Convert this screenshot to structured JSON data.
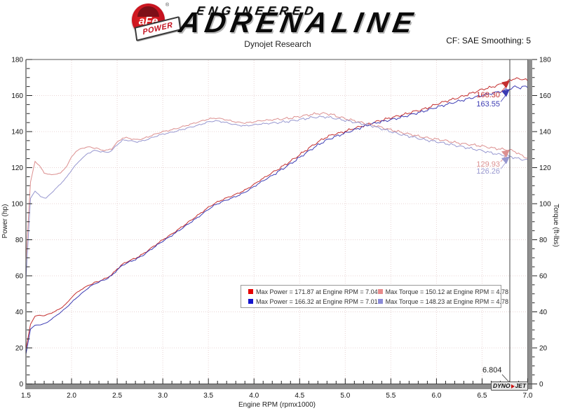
{
  "header": {
    "logo_afe": "aFe",
    "logo_power": "POWER",
    "logo_registered": "®",
    "wordmark_line1": "ENGINEERED",
    "wordmark_line2": "ADRENALINE",
    "subtitle": "Dynojet Research",
    "cf_label": "CF: SAE Smoothing: 5"
  },
  "footer_logo": {
    "dyno": "DYNO",
    "jet": "JET"
  },
  "chart_data": {
    "type": "line",
    "xlabel": "Engine RPM (rpmx1000)",
    "ylabel_left": "Power (hp)",
    "ylabel_right": "Torque (ft-lbs)",
    "xlim": [
      1.5,
      7.0
    ],
    "ylim": [
      0,
      180
    ],
    "x_major_step": 0.5,
    "x_minor_step": 0.1,
    "y_major_step": 20,
    "y_minor_step": 5,
    "grid": "dotted",
    "grid_color": "#e8d4d4",
    "legend_position": "bottom-center",
    "cursor": {
      "x": 6.804,
      "label": "6.804"
    },
    "cursor_readouts": [
      {
        "text": "168.30",
        "value": 168.3,
        "color": "#c42f2f"
      },
      {
        "text": "163.55",
        "value": 163.55,
        "color": "#3c3cb4"
      },
      {
        "text": "129.93",
        "value": 129.93,
        "color": "#dc9090"
      },
      {
        "text": "126.26",
        "value": 126.26,
        "color": "#9898d0"
      }
    ],
    "legend": [
      {
        "color": "#e60000",
        "label": "Max Power = 171.87 at Engine RPM = 7.04"
      },
      {
        "color": "#1414cc",
        "label": "Max Power = 166.32 at Engine RPM = 7.01"
      },
      {
        "color": "#e88a8a",
        "label": "Max Torque = 150.12 at Engine RPM = 4.78"
      },
      {
        "color": "#8a8ad8",
        "label": "Max Torque = 148.23 at Engine RPM = 4.78"
      }
    ],
    "series": [
      {
        "name": "power-red",
        "color": "#c42f2f",
        "axis": "left",
        "points": [
          [
            1.5,
            19.4
          ],
          [
            1.55,
            33.1
          ],
          [
            1.6,
            37.6
          ],
          [
            1.65,
            38.0
          ],
          [
            1.7,
            37.9
          ],
          [
            1.78,
            39.3
          ],
          [
            1.88,
            41.9
          ],
          [
            1.95,
            44.9
          ],
          [
            2.0,
            48.0
          ],
          [
            2.05,
            50.4
          ],
          [
            2.1,
            52.2
          ],
          [
            2.18,
            54.6
          ],
          [
            2.25,
            56.1
          ],
          [
            2.32,
            57.4
          ],
          [
            2.38,
            58.7
          ],
          [
            2.44,
            60.6
          ],
          [
            2.5,
            63.8
          ],
          [
            2.56,
            66.5
          ],
          [
            2.62,
            68.1
          ],
          [
            2.7,
            69.7
          ],
          [
            2.78,
            72.0
          ],
          [
            2.86,
            74.9
          ],
          [
            2.94,
            77.8
          ],
          [
            3.0,
            80.0
          ],
          [
            3.1,
            83.2
          ],
          [
            3.2,
            86.8
          ],
          [
            3.3,
            90.5
          ],
          [
            3.4,
            94.2
          ],
          [
            3.5,
            98.0
          ],
          [
            3.58,
            100.5
          ],
          [
            3.66,
            102.4
          ],
          [
            3.74,
            104.0
          ],
          [
            3.82,
            105.6
          ],
          [
            3.9,
            107.5
          ],
          [
            3.98,
            110.0
          ],
          [
            4.06,
            112.8
          ],
          [
            4.14,
            115.3
          ],
          [
            4.22,
            117.8
          ],
          [
            4.3,
            120.3
          ],
          [
            4.38,
            122.9
          ],
          [
            4.46,
            125.7
          ],
          [
            4.54,
            128.6
          ],
          [
            4.62,
            131.5
          ],
          [
            4.7,
            134.2
          ],
          [
            4.78,
            136.6
          ],
          [
            4.86,
            138.3
          ],
          [
            4.94,
            139.2
          ],
          [
            5.02,
            140.5
          ],
          [
            5.1,
            141.8
          ],
          [
            5.18,
            143.0
          ],
          [
            5.26,
            144.2
          ],
          [
            5.34,
            145.5
          ],
          [
            5.42,
            146.6
          ],
          [
            5.5,
            147.7
          ],
          [
            5.58,
            148.7
          ],
          [
            5.66,
            149.7
          ],
          [
            5.74,
            151.0
          ],
          [
            5.82,
            151.9
          ],
          [
            5.9,
            153.1
          ],
          [
            6.0,
            155.2
          ],
          [
            6.1,
            156.8
          ],
          [
            6.2,
            158.2
          ],
          [
            6.3,
            159.8
          ],
          [
            6.4,
            161.6
          ],
          [
            6.5,
            163.4
          ],
          [
            6.6,
            164.6
          ],
          [
            6.7,
            166.2
          ],
          [
            6.8,
            168.3
          ],
          [
            6.86,
            169.6
          ],
          [
            6.92,
            168.9
          ],
          [
            6.96,
            169.4
          ],
          [
            7.0,
            168.2
          ]
        ]
      },
      {
        "name": "power-blue",
        "color": "#3c3cb4",
        "axis": "left",
        "points": [
          [
            1.5,
            16.6
          ],
          [
            1.55,
            30.4
          ],
          [
            1.6,
            32.6
          ],
          [
            1.66,
            32.9
          ],
          [
            1.72,
            33.7
          ],
          [
            1.8,
            36.7
          ],
          [
            1.88,
            39.7
          ],
          [
            1.95,
            42.7
          ],
          [
            2.02,
            46.2
          ],
          [
            2.1,
            49.8
          ],
          [
            2.18,
            53.1
          ],
          [
            2.25,
            55.5
          ],
          [
            2.32,
            57.0
          ],
          [
            2.38,
            58.2
          ],
          [
            2.44,
            60.1
          ],
          [
            2.5,
            63.2
          ],
          [
            2.56,
            65.9
          ],
          [
            2.62,
            67.4
          ],
          [
            2.7,
            69.0
          ],
          [
            2.78,
            71.3
          ],
          [
            2.86,
            74.2
          ],
          [
            2.94,
            77.1
          ],
          [
            3.0,
            79.2
          ],
          [
            3.1,
            82.4
          ],
          [
            3.2,
            85.9
          ],
          [
            3.3,
            89.5
          ],
          [
            3.4,
            93.0
          ],
          [
            3.5,
            96.9
          ],
          [
            3.58,
            99.5
          ],
          [
            3.66,
            101.3
          ],
          [
            3.74,
            102.8
          ],
          [
            3.82,
            104.4
          ],
          [
            3.9,
            106.3
          ],
          [
            3.98,
            108.8
          ],
          [
            4.06,
            111.5
          ],
          [
            4.14,
            113.9
          ],
          [
            4.22,
            116.3
          ],
          [
            4.3,
            118.9
          ],
          [
            4.38,
            121.5
          ],
          [
            4.46,
            124.2
          ],
          [
            4.54,
            127.1
          ],
          [
            4.62,
            129.9
          ],
          [
            4.7,
            132.5
          ],
          [
            4.78,
            134.9
          ],
          [
            4.86,
            136.6
          ],
          [
            4.94,
            138.1
          ],
          [
            5.02,
            139.5
          ],
          [
            5.1,
            141.0
          ],
          [
            5.18,
            142.4
          ],
          [
            5.26,
            143.8
          ],
          [
            5.34,
            144.9
          ],
          [
            5.42,
            145.7
          ],
          [
            5.5,
            146.6
          ],
          [
            5.58,
            147.5
          ],
          [
            5.66,
            148.5
          ],
          [
            5.74,
            149.7
          ],
          [
            5.82,
            150.7
          ],
          [
            5.9,
            151.9
          ],
          [
            6.0,
            153.5
          ],
          [
            6.1,
            154.9
          ],
          [
            6.2,
            156.3
          ],
          [
            6.3,
            157.6
          ],
          [
            6.4,
            158.9
          ],
          [
            6.5,
            160.1
          ],
          [
            6.6,
            161.1
          ],
          [
            6.7,
            162.3
          ],
          [
            6.8,
            163.6
          ],
          [
            6.86,
            164.9
          ],
          [
            6.92,
            164.3
          ],
          [
            6.96,
            165.1
          ],
          [
            7.0,
            164.4
          ]
        ]
      },
      {
        "name": "torque-red",
        "color": "#dc9090",
        "axis": "right",
        "points": [
          [
            1.5,
            68
          ],
          [
            1.55,
            112
          ],
          [
            1.6,
            123.5
          ],
          [
            1.65,
            121
          ],
          [
            1.7,
            117
          ],
          [
            1.78,
            116
          ],
          [
            1.88,
            117
          ],
          [
            1.95,
            121
          ],
          [
            2.0,
            126
          ],
          [
            2.05,
            129
          ],
          [
            2.1,
            130.5
          ],
          [
            2.18,
            131.5
          ],
          [
            2.25,
            131
          ],
          [
            2.32,
            130
          ],
          [
            2.38,
            129.5
          ],
          [
            2.44,
            130.5
          ],
          [
            2.5,
            134
          ],
          [
            2.56,
            136.5
          ],
          [
            2.62,
            136.5
          ],
          [
            2.7,
            135.5
          ],
          [
            2.78,
            136
          ],
          [
            2.86,
            137.5
          ],
          [
            2.94,
            139
          ],
          [
            3.0,
            140
          ],
          [
            3.1,
            141
          ],
          [
            3.2,
            142.5
          ],
          [
            3.3,
            144
          ],
          [
            3.4,
            145.5
          ],
          [
            3.5,
            147
          ],
          [
            3.58,
            147.5
          ],
          [
            3.66,
            147
          ],
          [
            3.74,
            146
          ],
          [
            3.82,
            145.2
          ],
          [
            3.9,
            144.8
          ],
          [
            3.98,
            145.2
          ],
          [
            4.06,
            146
          ],
          [
            4.14,
            146.3
          ],
          [
            4.22,
            146.6
          ],
          [
            4.3,
            147
          ],
          [
            4.38,
            147.4
          ],
          [
            4.46,
            148
          ],
          [
            4.54,
            148.8
          ],
          [
            4.62,
            149.5
          ],
          [
            4.7,
            150
          ],
          [
            4.78,
            150.1
          ],
          [
            4.86,
            149.4
          ],
          [
            4.94,
            148
          ],
          [
            5.02,
            147
          ],
          [
            5.1,
            146
          ],
          [
            5.18,
            145
          ],
          [
            5.26,
            144
          ],
          [
            5.34,
            143.2
          ],
          [
            5.42,
            142
          ],
          [
            5.5,
            141
          ],
          [
            5.58,
            140
          ],
          [
            5.66,
            139
          ],
          [
            5.74,
            138.2
          ],
          [
            5.82,
            137.2
          ],
          [
            5.9,
            136.5
          ],
          [
            6.0,
            135.8
          ],
          [
            6.1,
            135
          ],
          [
            6.2,
            134
          ],
          [
            6.3,
            133.2
          ],
          [
            6.4,
            132.6
          ],
          [
            6.5,
            132
          ],
          [
            6.6,
            131
          ],
          [
            6.7,
            130.3
          ],
          [
            6.8,
            129.9
          ],
          [
            6.88,
            128.5
          ],
          [
            6.94,
            126.5
          ],
          [
            7.0,
            125.3
          ]
        ]
      },
      {
        "name": "torque-blue",
        "color": "#9898d0",
        "axis": "right",
        "points": [
          [
            1.5,
            58
          ],
          [
            1.55,
            103
          ],
          [
            1.6,
            107
          ],
          [
            1.66,
            104
          ],
          [
            1.72,
            103
          ],
          [
            1.8,
            107
          ],
          [
            1.88,
            111
          ],
          [
            1.95,
            115
          ],
          [
            2.02,
            120
          ],
          [
            2.1,
            124.5
          ],
          [
            2.18,
            128
          ],
          [
            2.25,
            129.5
          ],
          [
            2.32,
            129
          ],
          [
            2.38,
            128.4
          ],
          [
            2.44,
            129.4
          ],
          [
            2.5,
            132.8
          ],
          [
            2.56,
            135.2
          ],
          [
            2.62,
            135.2
          ],
          [
            2.7,
            134.3
          ],
          [
            2.78,
            134.8
          ],
          [
            2.86,
            136.2
          ],
          [
            2.94,
            137.7
          ],
          [
            3.0,
            138.6
          ],
          [
            3.1,
            139.6
          ],
          [
            3.2,
            141
          ],
          [
            3.3,
            142.4
          ],
          [
            3.4,
            143.7
          ],
          [
            3.5,
            145.4
          ],
          [
            3.58,
            146
          ],
          [
            3.66,
            145.4
          ],
          [
            3.74,
            144.4
          ],
          [
            3.82,
            143.6
          ],
          [
            3.9,
            143.2
          ],
          [
            3.98,
            143.6
          ],
          [
            4.06,
            144.2
          ],
          [
            4.14,
            144.5
          ],
          [
            4.22,
            144.8
          ],
          [
            4.3,
            145.2
          ],
          [
            4.38,
            145.7
          ],
          [
            4.46,
            146.3
          ],
          [
            4.54,
            147
          ],
          [
            4.62,
            147.7
          ],
          [
            4.7,
            148.1
          ],
          [
            4.78,
            148.2
          ],
          [
            4.86,
            147.6
          ],
          [
            4.94,
            146.8
          ],
          [
            5.02,
            146
          ],
          [
            5.1,
            145.2
          ],
          [
            5.18,
            144.4
          ],
          [
            5.26,
            143.6
          ],
          [
            5.34,
            142.5
          ],
          [
            5.42,
            141.2
          ],
          [
            5.5,
            140
          ],
          [
            5.58,
            138.8
          ],
          [
            5.66,
            137.8
          ],
          [
            5.74,
            137
          ],
          [
            5.82,
            136
          ],
          [
            5.9,
            135.2
          ],
          [
            6.0,
            134.4
          ],
          [
            6.1,
            133.4
          ],
          [
            6.2,
            132.4
          ],
          [
            6.3,
            131.4
          ],
          [
            6.4,
            130.4
          ],
          [
            6.5,
            129.4
          ],
          [
            6.6,
            128.2
          ],
          [
            6.7,
            127.2
          ],
          [
            6.8,
            126.3
          ],
          [
            6.88,
            125.2
          ],
          [
            6.94,
            124.5
          ],
          [
            7.0,
            124.6
          ]
        ]
      }
    ]
  }
}
